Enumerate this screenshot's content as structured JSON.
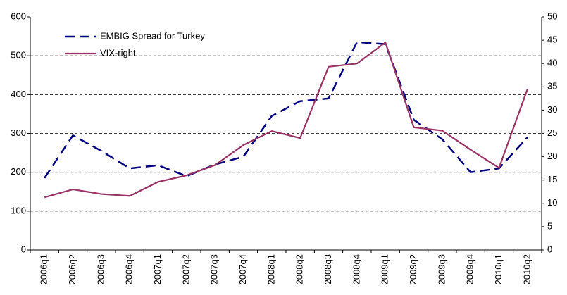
{
  "chart_data": {
    "type": "line",
    "categories": [
      "2006q1",
      "2006q2",
      "2006q3",
      "2006q4",
      "2007q1",
      "2007q2",
      "2007q3",
      "2007q4",
      "2008q1",
      "2008q2",
      "2008q3",
      "2008q4",
      "2009q1",
      "2009q2",
      "2009q3",
      "2009q4",
      "2010q1",
      "2010q2"
    ],
    "series": [
      {
        "name": "EMBIG Spread for Turkey",
        "color": "#000080",
        "dashed": true,
        "values": [
          185,
          295,
          255,
          210,
          218,
          190,
          220,
          240,
          345,
          383,
          390,
          535,
          530,
          335,
          285,
          200,
          210,
          290
        ]
      },
      {
        "name": "VIX-right",
        "color": "#993366",
        "dashed": false,
        "axis": "y2",
        "values": [
          11.3,
          13,
          12,
          11.6,
          14.6,
          16,
          18.2,
          22.5,
          25.5,
          24,
          39.3,
          40,
          44.5,
          26.3,
          25.6,
          21.5,
          17.6,
          34.5
        ]
      }
    ],
    "ylim": [
      0,
      600
    ],
    "yticks": [
      0,
      100,
      200,
      300,
      400,
      500,
      600
    ],
    "y2lim": [
      0,
      50
    ],
    "y2ticks": [
      0,
      5,
      10,
      15,
      20,
      25,
      30,
      35,
      40,
      45,
      50
    ],
    "grid": true,
    "legend": "top-left"
  }
}
